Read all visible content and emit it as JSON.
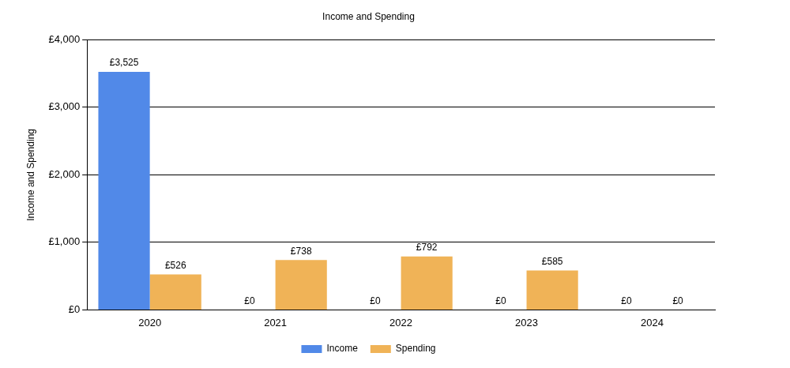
{
  "chart_data": {
    "type": "bar",
    "title": "Income and Spending",
    "y_label": "Income and Spending",
    "categories": [
      "2020",
      "2021",
      "2022",
      "2023",
      "2024"
    ],
    "series": [
      {
        "name": "Income",
        "color": "#5189e8",
        "values": [
          3525,
          0,
          0,
          0,
          0
        ],
        "value_labels": [
          "£3,525",
          "£0",
          "£0",
          "£0",
          "£0"
        ]
      },
      {
        "name": "Spending",
        "color": "#f0b357",
        "values": [
          526,
          738,
          792,
          585,
          0
        ],
        "value_labels": [
          "£526",
          "£738",
          "£792",
          "£585",
          "£0"
        ]
      }
    ],
    "ylim": [
      0,
      4000
    ],
    "yticks": [
      {
        "value": 0,
        "label": "£0"
      },
      {
        "value": 1000,
        "label": "£1,000"
      },
      {
        "value": 2000,
        "label": "£2,000"
      },
      {
        "value": 3000,
        "label": "£3,000"
      },
      {
        "value": 4000,
        "label": "£4,000"
      }
    ],
    "grid": true,
    "legend": "bottom",
    "data_labels": true
  }
}
